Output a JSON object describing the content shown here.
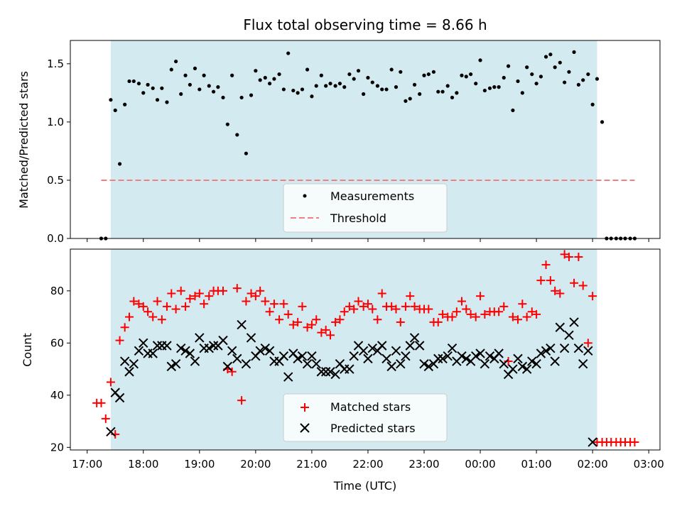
{
  "chart_data": {
    "title": "Flux total observing time = 8.66 h",
    "shared_x": {
      "label": "Time (UTC)",
      "unit": "hours since 17:00",
      "lim": [
        -0.3,
        10.2
      ],
      "ticks": [
        0,
        1,
        2,
        3,
        4,
        5,
        6,
        7,
        8,
        9,
        10
      ],
      "tick_labels": [
        "17:00",
        "18:00",
        "19:00",
        "20:00",
        "21:00",
        "22:00",
        "23:00",
        "00:00",
        "01:00",
        "02:00",
        "03:00"
      ],
      "observing_window": [
        0.42,
        9.08
      ],
      "window_color": "#d3eaf0"
    },
    "charts": [
      {
        "type": "scatter",
        "ylabel": "Matched/Predicted stars",
        "ylim": [
          0.0,
          1.7
        ],
        "yticks": [
          0.0,
          0.5,
          1.0,
          1.5
        ],
        "ytick_labels": [
          "0.0",
          "0.5",
          "1.0",
          "1.5"
        ],
        "legend_position": "lower-center",
        "legend": [
          "Measurements",
          "Threshold"
        ],
        "threshold": {
          "name": "Threshold",
          "value": 0.5,
          "x_range": [
            0.25,
            9.75
          ],
          "color": "#f07f7f"
        },
        "series": [
          {
            "name": "Measurements",
            "marker": "dot",
            "color": "#000000",
            "x": [
              0.25,
              0.33,
              0.42,
              0.5,
              0.58,
              0.67,
              0.75,
              0.83,
              0.92,
              1.0,
              1.08,
              1.17,
              1.25,
              1.33,
              1.42,
              1.5,
              1.58,
              1.67,
              1.75,
              1.83,
              1.92,
              2.0,
              2.08,
              2.17,
              2.25,
              2.33,
              2.42,
              2.5,
              2.58,
              2.67,
              2.75,
              2.83,
              2.92,
              3.0,
              3.08,
              3.17,
              3.25,
              3.33,
              3.42,
              3.5,
              3.58,
              3.67,
              3.75,
              3.83,
              3.92,
              4.0,
              4.08,
              4.17,
              4.25,
              4.33,
              4.42,
              4.5,
              4.58,
              4.67,
              4.75,
              4.83,
              4.92,
              5.0,
              5.08,
              5.17,
              5.25,
              5.33,
              5.42,
              5.5,
              5.58,
              5.67,
              5.75,
              5.83,
              5.92,
              6.0,
              6.08,
              6.17,
              6.25,
              6.33,
              6.42,
              6.5,
              6.58,
              6.67,
              6.75,
              6.83,
              6.92,
              7.0,
              7.08,
              7.17,
              7.25,
              7.33,
              7.42,
              7.5,
              7.58,
              7.67,
              7.75,
              7.83,
              7.92,
              8.0,
              8.08,
              8.17,
              8.25,
              8.33,
              8.42,
              8.5,
              8.58,
              8.67,
              8.75,
              8.83,
              8.92,
              9.0,
              9.08,
              9.17,
              9.25,
              9.33,
              9.42,
              9.5,
              9.58,
              9.67,
              9.75
            ],
            "values": [
              0.0,
              0.0,
              1.19,
              1.1,
              0.64,
              1.15,
              1.35,
              1.35,
              1.33,
              1.25,
              1.32,
              1.29,
              1.19,
              1.29,
              1.17,
              1.45,
              1.52,
              1.24,
              1.4,
              1.32,
              1.46,
              1.28,
              1.4,
              1.31,
              1.26,
              1.3,
              1.21,
              0.98,
              1.4,
              0.89,
              1.21,
              0.73,
              1.23,
              1.44,
              1.36,
              1.38,
              1.33,
              1.37,
              1.41,
              1.28,
              1.59,
              1.27,
              1.25,
              1.28,
              1.45,
              1.22,
              1.31,
              1.4,
              1.31,
              1.33,
              1.31,
              1.33,
              1.3,
              1.41,
              1.37,
              1.44,
              1.24,
              1.38,
              1.34,
              1.31,
              1.28,
              1.28,
              1.45,
              1.3,
              1.43,
              1.18,
              1.2,
              1.32,
              1.24,
              1.4,
              1.41,
              1.43,
              1.26,
              1.26,
              1.31,
              1.21,
              1.25,
              1.4,
              1.39,
              1.41,
              1.33,
              1.53,
              1.27,
              1.29,
              1.3,
              1.3,
              1.38,
              1.48,
              1.1,
              1.35,
              1.25,
              1.47,
              1.41,
              1.33,
              1.39,
              1.56,
              1.58,
              1.47,
              1.51,
              1.34,
              1.43,
              1.6,
              1.32,
              1.36,
              1.41,
              1.15,
              1.37,
              1.0,
              0.0,
              0.0,
              0.0,
              0.0,
              0.0,
              0.0,
              0.0
            ]
          }
        ]
      },
      {
        "type": "scatter",
        "ylabel": "Count",
        "ylim": [
          19,
          96
        ],
        "yticks": [
          20,
          40,
          60,
          80
        ],
        "ytick_labels": [
          "20",
          "40",
          "60",
          "80"
        ],
        "legend_position": "lower-center",
        "legend": [
          "Matched stars",
          "Predicted stars"
        ],
        "series": [
          {
            "name": "Matched stars",
            "marker": "plus",
            "color": "#ff0000",
            "x": [
              0.17,
              0.25,
              0.33,
              0.42,
              0.5,
              0.58,
              0.67,
              0.75,
              0.83,
              0.92,
              1.0,
              1.08,
              1.17,
              1.25,
              1.33,
              1.42,
              1.5,
              1.58,
              1.67,
              1.75,
              1.83,
              1.92,
              2.0,
              2.08,
              2.17,
              2.25,
              2.33,
              2.42,
              2.5,
              2.58,
              2.67,
              2.75,
              2.83,
              2.92,
              3.0,
              3.08,
              3.17,
              3.25,
              3.33,
              3.42,
              3.5,
              3.58,
              3.67,
              3.75,
              3.83,
              3.92,
              4.0,
              4.08,
              4.17,
              4.25,
              4.33,
              4.42,
              4.5,
              4.58,
              4.67,
              4.75,
              4.83,
              4.92,
              5.0,
              5.08,
              5.17,
              5.25,
              5.33,
              5.42,
              5.5,
              5.58,
              5.67,
              5.75,
              5.83,
              5.92,
              6.0,
              6.08,
              6.17,
              6.25,
              6.33,
              6.42,
              6.5,
              6.58,
              6.67,
              6.75,
              6.83,
              6.92,
              7.0,
              7.08,
              7.17,
              7.25,
              7.33,
              7.42,
              7.5,
              7.58,
              7.67,
              7.75,
              7.83,
              7.92,
              8.0,
              8.08,
              8.17,
              8.25,
              8.33,
              8.42,
              8.5,
              8.58,
              8.67,
              8.75,
              8.83,
              8.92,
              9.0,
              9.08,
              9.17,
              9.25,
              9.33,
              9.42,
              9.5,
              9.58,
              9.67,
              9.75
            ],
            "values": [
              37,
              37,
              31,
              45,
              25,
              61,
              66,
              70,
              76,
              75,
              74,
              72,
              70,
              76,
              69,
              74,
              79,
              73,
              80,
              74,
              77,
              78,
              79,
              75,
              78,
              80,
              80,
              80,
              50,
              49,
              81,
              38,
              76,
              79,
              78,
              80,
              76,
              72,
              75,
              69,
              75,
              71,
              67,
              68,
              74,
              66,
              67,
              69,
              64,
              65,
              63,
              68,
              69,
              72,
              74,
              73,
              76,
              74,
              75,
              73,
              69,
              79,
              74,
              74,
              73,
              68,
              74,
              78,
              74,
              73,
              73,
              73,
              68,
              68,
              71,
              70,
              70,
              72,
              76,
              73,
              71,
              70,
              78,
              71,
              72,
              72,
              72,
              74,
              53,
              70,
              69,
              75,
              70,
              72,
              71,
              84,
              90,
              84,
              80,
              79,
              94,
              93,
              83,
              93,
              82,
              60,
              78,
              22,
              22,
              22,
              22,
              22,
              22,
              22,
              22,
              22
            ],
            "legend_marker_color": "#ff0000"
          },
          {
            "name": "Predicted stars",
            "marker": "x",
            "color": "#000000",
            "x": [
              0.42,
              0.5,
              0.58,
              0.67,
              0.75,
              0.83,
              0.92,
              1.0,
              1.08,
              1.17,
              1.25,
              1.33,
              1.42,
              1.5,
              1.58,
              1.67,
              1.75,
              1.83,
              1.92,
              2.0,
              2.08,
              2.17,
              2.25,
              2.33,
              2.42,
              2.5,
              2.58,
              2.67,
              2.75,
              2.83,
              2.92,
              3.0,
              3.08,
              3.17,
              3.25,
              3.33,
              3.42,
              3.5,
              3.58,
              3.67,
              3.75,
              3.83,
              3.92,
              4.0,
              4.08,
              4.17,
              4.25,
              4.33,
              4.42,
              4.5,
              4.58,
              4.67,
              4.75,
              4.83,
              4.92,
              5.0,
              5.08,
              5.17,
              5.25,
              5.33,
              5.42,
              5.5,
              5.58,
              5.67,
              5.75,
              5.83,
              5.92,
              6.0,
              6.08,
              6.17,
              6.25,
              6.33,
              6.42,
              6.5,
              6.58,
              6.67,
              6.75,
              6.83,
              6.92,
              7.0,
              7.08,
              7.17,
              7.25,
              7.33,
              7.42,
              7.5,
              7.58,
              7.67,
              7.75,
              7.83,
              7.92,
              8.0,
              8.08,
              8.17,
              8.25,
              8.33,
              8.42,
              8.5,
              8.58,
              8.67,
              8.75,
              8.83,
              8.92,
              9.0
            ],
            "values": [
              26,
              41,
              39,
              53,
              49,
              52,
              57,
              60,
              56,
              56,
              59,
              59,
              59,
              51,
              52,
              58,
              57,
              56,
              53,
              62,
              58,
              58,
              59,
              59,
              61,
              51,
              57,
              54,
              67,
              52,
              62,
              55,
              57,
              58,
              57,
              53,
              53,
              55,
              47,
              56,
              54,
              55,
              52,
              55,
              52,
              49,
              49,
              49,
              48,
              52,
              50,
              50,
              55,
              59,
              57,
              54,
              58,
              57,
              59,
              54,
              51,
              57,
              52,
              55,
              59,
              62,
              59,
              52,
              51,
              52,
              54,
              54,
              55,
              58,
              53,
              55,
              54,
              53,
              55,
              56,
              52,
              55,
              54,
              56,
              52,
              48,
              50,
              54,
              51,
              50,
              53,
              52,
              56,
              57,
              58,
              53,
              66,
              58,
              63,
              68,
              58,
              52,
              57,
              22
            ],
            "legend_marker_color": "#000000"
          }
        ]
      }
    ]
  }
}
